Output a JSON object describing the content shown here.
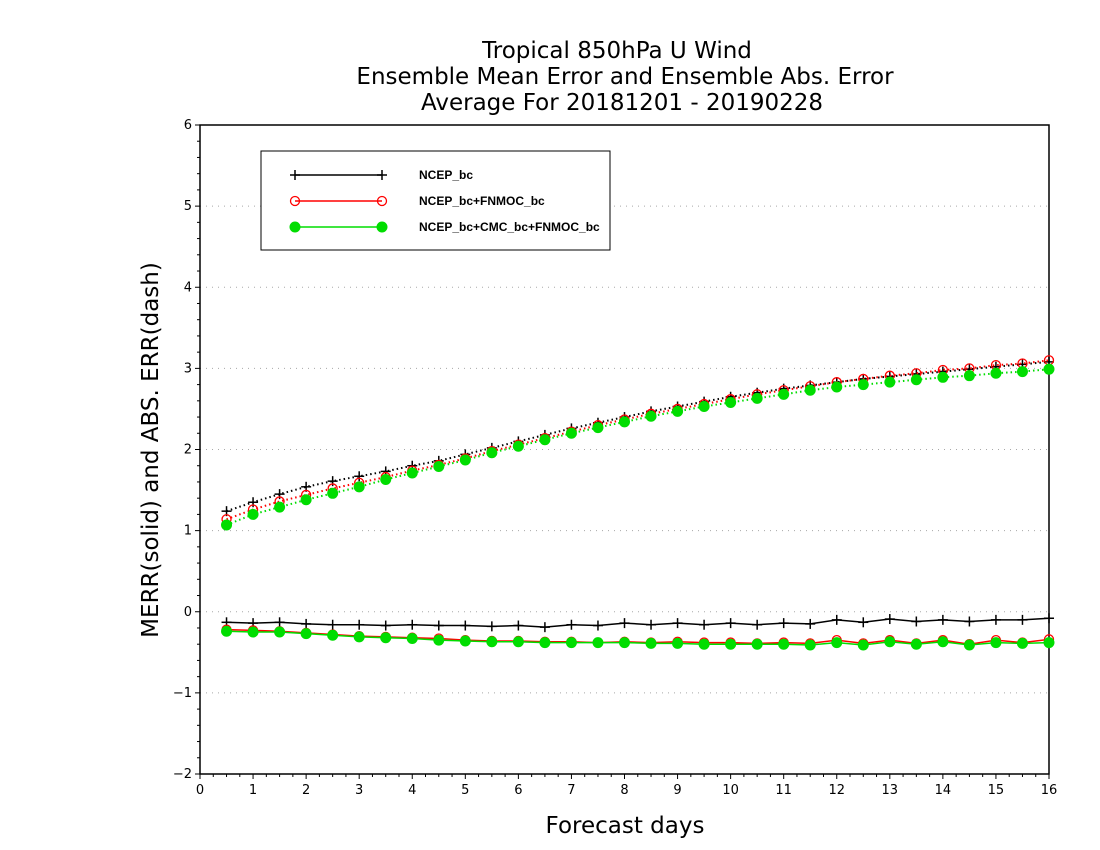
{
  "chart_data": {
    "type": "line",
    "title": [
      "Tropical 850hPa U Wind",
      "Ensemble Mean Error and Ensemble Abs. Error",
      "Average For 20181201 - 20190228"
    ],
    "xlabel": "Forecast days",
    "ylabel": "MERR(solid) and ABS. ERR(dash)",
    "xlim": [
      0,
      16
    ],
    "ylim": [
      -2,
      6
    ],
    "x_ticks": [
      "0",
      "1",
      "2",
      "3",
      "4",
      "5",
      "6",
      "7",
      "8",
      "9",
      "10",
      "11",
      "12",
      "13",
      "14",
      "15",
      "16"
    ],
    "y_ticks": [
      "-2",
      "-1",
      "0",
      "1",
      "2",
      "3",
      "4",
      "5",
      "6"
    ],
    "grid": "horizontal dotted",
    "legend_position": "top-left",
    "x": [
      0.5,
      1,
      1.5,
      2,
      2.5,
      3,
      3.5,
      4,
      4.5,
      5,
      5.5,
      6,
      6.5,
      7,
      7.5,
      8,
      8.5,
      9,
      9.5,
      10,
      10.5,
      11,
      11.5,
      12,
      12.5,
      13,
      13.5,
      14,
      14.5,
      15,
      15.5,
      16
    ],
    "series": [
      {
        "name": "NCEP_bc",
        "color": "#000000",
        "marker": "plus",
        "merr": [
          -0.13,
          -0.14,
          -0.13,
          -0.15,
          -0.16,
          -0.16,
          -0.17,
          -0.16,
          -0.17,
          -0.17,
          -0.18,
          -0.17,
          -0.19,
          -0.16,
          -0.17,
          -0.14,
          -0.16,
          -0.14,
          -0.16,
          -0.14,
          -0.16,
          -0.14,
          -0.15,
          -0.1,
          -0.13,
          -0.09,
          -0.12,
          -0.1,
          -0.12,
          -0.1,
          -0.1,
          -0.08
        ],
        "abs_err": [
          1.24,
          1.35,
          1.45,
          1.54,
          1.61,
          1.67,
          1.73,
          1.8,
          1.86,
          1.94,
          2.02,
          2.1,
          2.18,
          2.26,
          2.33,
          2.4,
          2.47,
          2.53,
          2.59,
          2.65,
          2.7,
          2.75,
          2.79,
          2.83,
          2.87,
          2.9,
          2.93,
          2.96,
          2.99,
          3.02,
          3.05,
          3.08
        ]
      },
      {
        "name": "NCEP_bc+FNMOC_bc",
        "color": "#ff0000",
        "marker": "open-circle",
        "merr": [
          -0.22,
          -0.23,
          -0.24,
          -0.26,
          -0.28,
          -0.3,
          -0.31,
          -0.32,
          -0.33,
          -0.35,
          -0.36,
          -0.36,
          -0.37,
          -0.37,
          -0.38,
          -0.37,
          -0.38,
          -0.37,
          -0.38,
          -0.38,
          -0.39,
          -0.38,
          -0.39,
          -0.35,
          -0.39,
          -0.35,
          -0.39,
          -0.35,
          -0.4,
          -0.35,
          -0.38,
          -0.34
        ],
        "abs_err": [
          1.14,
          1.26,
          1.36,
          1.44,
          1.52,
          1.59,
          1.66,
          1.74,
          1.81,
          1.89,
          1.98,
          2.06,
          2.14,
          2.22,
          2.3,
          2.37,
          2.44,
          2.5,
          2.56,
          2.62,
          2.68,
          2.73,
          2.78,
          2.83,
          2.87,
          2.91,
          2.94,
          2.98,
          3.0,
          3.04,
          3.06,
          3.1
        ]
      },
      {
        "name": "NCEP_bc+CMC_bc+FNMOC_bc",
        "color": "#00dd00",
        "marker": "filled-circle",
        "merr": [
          -0.24,
          -0.25,
          -0.25,
          -0.27,
          -0.29,
          -0.31,
          -0.32,
          -0.33,
          -0.35,
          -0.36,
          -0.37,
          -0.37,
          -0.38,
          -0.38,
          -0.38,
          -0.38,
          -0.39,
          -0.39,
          -0.4,
          -0.4,
          -0.4,
          -0.4,
          -0.41,
          -0.38,
          -0.41,
          -0.37,
          -0.4,
          -0.37,
          -0.41,
          -0.38,
          -0.39,
          -0.38
        ],
        "abs_err": [
          1.07,
          1.2,
          1.29,
          1.38,
          1.46,
          1.54,
          1.63,
          1.71,
          1.79,
          1.87,
          1.96,
          2.04,
          2.12,
          2.2,
          2.27,
          2.34,
          2.41,
          2.47,
          2.53,
          2.58,
          2.63,
          2.68,
          2.73,
          2.77,
          2.8,
          2.83,
          2.86,
          2.89,
          2.91,
          2.94,
          2.96,
          2.99
        ]
      }
    ]
  }
}
